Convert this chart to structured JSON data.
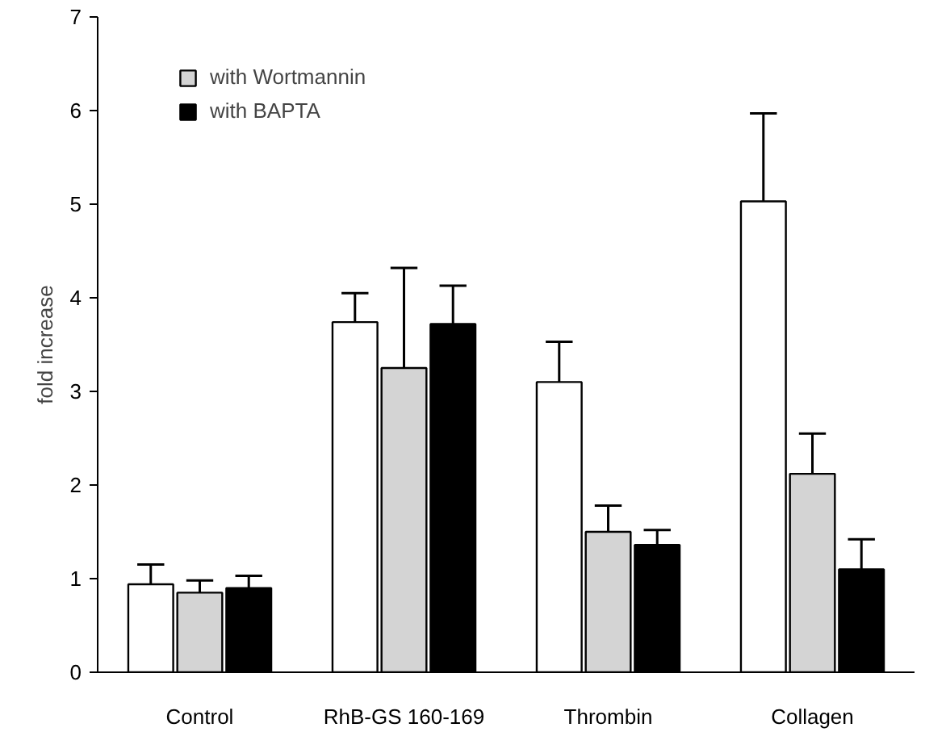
{
  "chart_data": {
    "type": "bar",
    "ylabel": "fold increase",
    "categories": [
      "Control",
      "RhB-GS 160-169",
      "Thrombin",
      "Collagen"
    ],
    "series": [
      {
        "color": "#ffffff",
        "values": [
          0.94,
          3.74,
          3.1,
          5.03
        ],
        "errors": [
          [
            0.94,
            1.15
          ],
          [
            3.74,
            4.05
          ],
          [
            3.1,
            3.53
          ],
          [
            5.03,
            5.97
          ]
        ]
      },
      {
        "name": "with Wortmannin",
        "color": "#d4d4d4",
        "values": [
          0.85,
          3.25,
          1.5,
          2.12
        ],
        "errors": [
          [
            0.85,
            0.98
          ],
          [
            3.25,
            4.32
          ],
          [
            1.5,
            1.78
          ],
          [
            2.12,
            2.55
          ]
        ]
      },
      {
        "name": "with BAPTA",
        "color": "#000000",
        "values": [
          0.9,
          3.72,
          1.36,
          1.1
        ],
        "errors": [
          [
            0.9,
            1.03
          ],
          [
            3.72,
            4.13
          ],
          [
            1.36,
            1.52
          ],
          [
            1.1,
            1.42
          ]
        ]
      }
    ],
    "ylim": [
      0,
      7
    ],
    "yticks": [
      0,
      1,
      2,
      3,
      4,
      5,
      6,
      7
    ],
    "grid": false,
    "legend": "top"
  }
}
